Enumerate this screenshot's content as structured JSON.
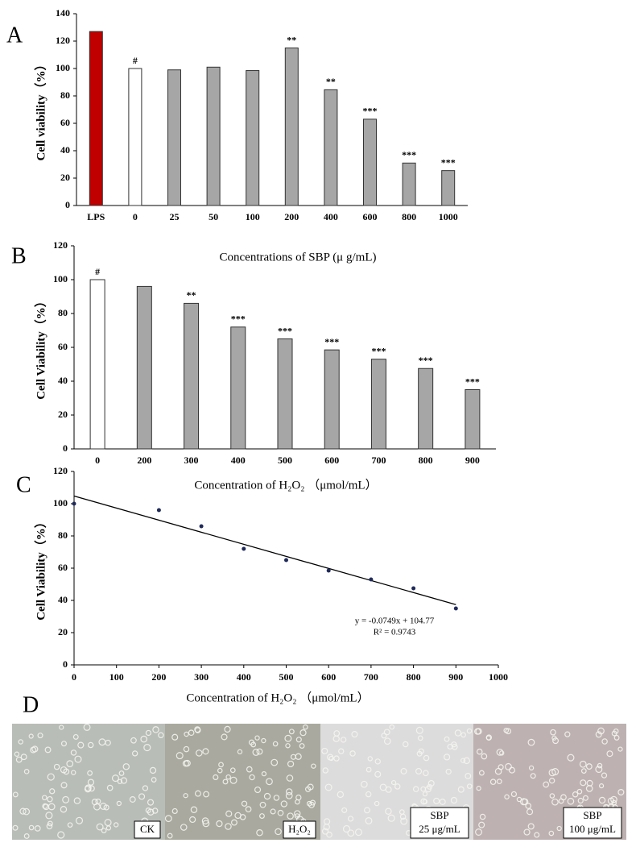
{
  "chart_data": [
    {
      "type": "bar",
      "panel_label": "A",
      "y_label": "Cell viability（%）",
      "x_label": "Concentrations of SBP (μ g/mL)",
      "categories": [
        "LPS",
        "0",
        "25",
        "50",
        "100",
        "200",
        "400",
        "600",
        "800",
        "1000"
      ],
      "values": [
        127,
        100,
        99,
        101,
        98.5,
        115,
        84.5,
        63,
        31,
        25.5
      ],
      "colors": [
        "#c00000",
        "#ffffff",
        "#a6a6a6",
        "#a6a6a6",
        "#a6a6a6",
        "#a6a6a6",
        "#a6a6a6",
        "#a6a6a6",
        "#a6a6a6",
        "#a6a6a6"
      ],
      "annotations": [
        null,
        "#",
        null,
        null,
        null,
        "**",
        "**",
        "***",
        "***",
        "***"
      ],
      "ylim": [
        0,
        140
      ],
      "yticks": [
        0,
        20,
        40,
        60,
        80,
        100,
        120,
        140
      ]
    },
    {
      "type": "bar",
      "panel_label": "B",
      "y_label": "Cell Viability（%）",
      "x_label": "Concentration of H₂O₂ （μmol/mL）",
      "categories": [
        "0",
        "200",
        "300",
        "400",
        "500",
        "600",
        "700",
        "800",
        "900"
      ],
      "values": [
        100,
        96,
        86,
        72,
        65,
        58.5,
        53,
        47.5,
        35
      ],
      "colors": [
        "#ffffff",
        "#a6a6a6",
        "#a6a6a6",
        "#a6a6a6",
        "#a6a6a6",
        "#a6a6a6",
        "#a6a6a6",
        "#a6a6a6",
        "#a6a6a6"
      ],
      "annotations": [
        "#",
        null,
        "**",
        "***",
        "***",
        "***",
        "***",
        "***",
        "***"
      ],
      "ylim": [
        0,
        120
      ],
      "yticks": [
        0,
        20,
        40,
        60,
        80,
        100,
        120
      ]
    },
    {
      "type": "scatter",
      "panel_label": "C",
      "y_label": "Cell Viability（%）",
      "x_label": "Concentration of H₂O₂ （μmol/mL）",
      "x": [
        0,
        200,
        300,
        400,
        500,
        600,
        700,
        800,
        900
      ],
      "values": [
        100,
        96,
        86,
        72,
        65,
        58.5,
        53,
        47.5,
        35
      ],
      "color": "#1f2a5a",
      "trendline": {
        "slope": -0.0749,
        "intercept": 104.77,
        "equation": "y = -0.0749x + 104.77",
        "r2": "R² = 0.9743"
      },
      "xlim": [
        0,
        1000
      ],
      "xticks": [
        0,
        100,
        200,
        300,
        400,
        500,
        600,
        700,
        800,
        900,
        1000
      ],
      "ylim": [
        0,
        120
      ],
      "yticks": [
        0,
        20,
        40,
        60,
        80,
        100,
        120
      ]
    }
  ],
  "micrographs": {
    "panel_label": "D",
    "labels": [
      [
        "CK"
      ],
      [
        "H₂O₂"
      ],
      [
        "SBP",
        "25 μg/mL"
      ],
      [
        "SBP",
        "100 μg/mL"
      ]
    ]
  }
}
